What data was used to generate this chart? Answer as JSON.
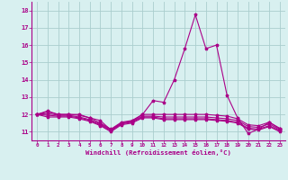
{
  "x": [
    0,
    1,
    2,
    3,
    4,
    5,
    6,
    7,
    8,
    9,
    10,
    11,
    12,
    13,
    14,
    15,
    16,
    17,
    18,
    19,
    20,
    21,
    22,
    23
  ],
  "line1": [
    12.0,
    12.2,
    12.0,
    12.0,
    12.0,
    11.8,
    11.65,
    11.1,
    11.5,
    11.6,
    12.0,
    12.8,
    12.7,
    14.0,
    15.8,
    17.75,
    15.8,
    16.0,
    13.1,
    11.8,
    10.9,
    11.15,
    11.55,
    11.2
  ],
  "line2": [
    12.0,
    12.15,
    12.0,
    12.0,
    11.95,
    11.8,
    11.5,
    11.15,
    11.55,
    11.65,
    12.0,
    12.0,
    12.0,
    12.0,
    12.0,
    12.0,
    12.0,
    11.95,
    11.9,
    11.75,
    11.4,
    11.35,
    11.55,
    11.15
  ],
  "line3": [
    12.0,
    12.05,
    11.95,
    11.95,
    11.85,
    11.7,
    11.45,
    11.1,
    11.5,
    11.6,
    11.9,
    11.9,
    11.85,
    11.85,
    11.85,
    11.85,
    11.85,
    11.8,
    11.75,
    11.65,
    11.3,
    11.25,
    11.45,
    11.1
  ],
  "line4": [
    12.0,
    11.95,
    11.9,
    11.9,
    11.8,
    11.65,
    11.4,
    11.05,
    11.45,
    11.55,
    11.85,
    11.85,
    11.75,
    11.75,
    11.75,
    11.75,
    11.75,
    11.7,
    11.65,
    11.55,
    11.2,
    11.15,
    11.35,
    11.05
  ],
  "line5": [
    12.0,
    11.85,
    11.85,
    11.85,
    11.75,
    11.6,
    11.35,
    11.0,
    11.4,
    11.5,
    11.8,
    11.8,
    11.7,
    11.7,
    11.7,
    11.7,
    11.7,
    11.65,
    11.6,
    11.5,
    11.15,
    11.1,
    11.3,
    11.0
  ],
  "color": "#aa0088",
  "bg_color": "#d8f0f0",
  "grid_color": "#aacece",
  "xlabel": "Windchill (Refroidissement éolien,°C)",
  "ylim": [
    10.5,
    18.5
  ],
  "yticks": [
    11,
    12,
    13,
    14,
    15,
    16,
    17,
    18
  ],
  "xticks": [
    0,
    1,
    2,
    3,
    4,
    5,
    6,
    7,
    8,
    9,
    10,
    11,
    12,
    13,
    14,
    15,
    16,
    17,
    18,
    19,
    20,
    21,
    22,
    23
  ]
}
